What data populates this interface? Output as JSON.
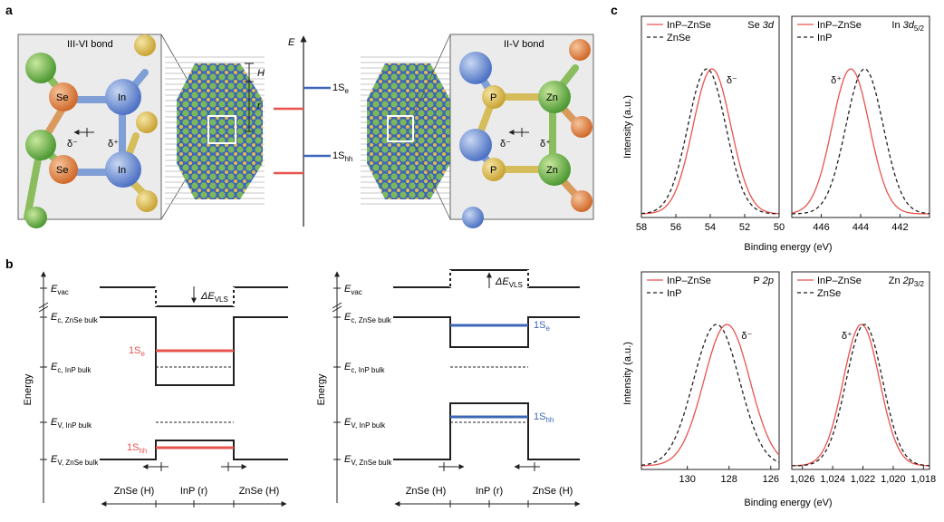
{
  "panels": {
    "a": {
      "label": "a",
      "left_zoom": {
        "title": "III-VI bond",
        "atom_se": "Se",
        "atom_in": "In",
        "delta_minus": "δ⁻",
        "delta_plus": "δ⁺"
      },
      "right_zoom": {
        "title": "II-V bond",
        "atom_p": "P",
        "atom_zn": "Zn",
        "delta_minus": "δ⁻",
        "delta_plus": "δ⁺"
      },
      "nc_labels": {
        "H": "H",
        "r": "r"
      },
      "energy_axis": {
        "label": "E",
        "level_e": "1S",
        "level_e_sub": "e",
        "level_hh": "1S",
        "level_hh_sub": "hh"
      }
    },
    "b": {
      "label": "b",
      "levels": {
        "vac": "E",
        "vac_sub": "vac",
        "c_znse": "E",
        "c_znse_sub": "c, ZnSe bulk",
        "c_inp": "E",
        "c_inp_sub": "c, InP bulk",
        "v_inp": "E",
        "v_inp_sub": "V, InP bulk",
        "v_znse": "E",
        "v_znse_sub": "V, ZnSe bulk"
      },
      "delta_vls": "ΔE",
      "delta_vls_sub": "VLS",
      "state_e": "1S",
      "state_e_sub": "e",
      "state_hh": "1S",
      "state_hh_sub": "hh",
      "ylabel": "Energy",
      "x_labels": {
        "left": "ZnSe (H)",
        "mid": "InP (r)",
        "right": "ZnSe (H)"
      }
    },
    "c": {
      "label": "c",
      "xlabel": "Binding energy (eV)",
      "ylabel": "Intensity (a.u.)"
    }
  },
  "chart_data": [
    {
      "type": "line",
      "title": "Se 3d",
      "series": [
        {
          "name": "InP–ZnSe",
          "color": "#e8534d",
          "center": 53.9
        },
        {
          "name": "ZnSe",
          "color": "#231f20",
          "center": 54.2
        }
      ],
      "annotation": "δ⁻",
      "xlim": [
        58,
        50
      ],
      "xticks": [
        "58",
        "56",
        "54",
        "52",
        "50"
      ],
      "xtick_values": [
        58,
        56,
        54,
        52,
        50
      ],
      "width": 1.1
    },
    {
      "type": "line",
      "title": "In 3d",
      "title_sub": "5/2",
      "series": [
        {
          "name": "InP–ZnSe",
          "color": "#e8534d",
          "center": 444.5
        },
        {
          "name": "InP",
          "color": "#231f20",
          "center": 443.8
        }
      ],
      "annotation": "δ⁺",
      "xlim": [
        447.5,
        440.5
      ],
      "xticks": [
        "446",
        "444",
        "442"
      ],
      "xtick_values": [
        446,
        444,
        442
      ],
      "width": 0.95
    },
    {
      "type": "line",
      "title": "P 2p",
      "series": [
        {
          "name": "InP–ZnSe",
          "color": "#e8534d",
          "center": 128.1
        },
        {
          "name": "InP",
          "color": "#231f20",
          "center": 128.6
        }
      ],
      "annotation": "δ⁻",
      "xlim": [
        132.2,
        125.6
      ],
      "xticks": [
        "130",
        "128",
        "126"
      ],
      "xtick_values": [
        130,
        128,
        126
      ],
      "width": 1.1
    },
    {
      "type": "line",
      "title": "Zn 2p",
      "title_sub": "3/2",
      "series": [
        {
          "name": "InP–ZnSe",
          "color": "#e8534d",
          "center": 1022.1
        },
        {
          "name": "ZnSe",
          "color": "#231f20",
          "center": 1021.9
        }
      ],
      "annotation": "δ⁺",
      "xlim": [
        1026.7,
        1017.6
      ],
      "xticks": [
        "1,026",
        "1,024",
        "1,022",
        "1,020",
        "1,018"
      ],
      "xtick_values": [
        1026,
        1024,
        1022,
        1020,
        1018
      ],
      "width": 1.2
    }
  ]
}
